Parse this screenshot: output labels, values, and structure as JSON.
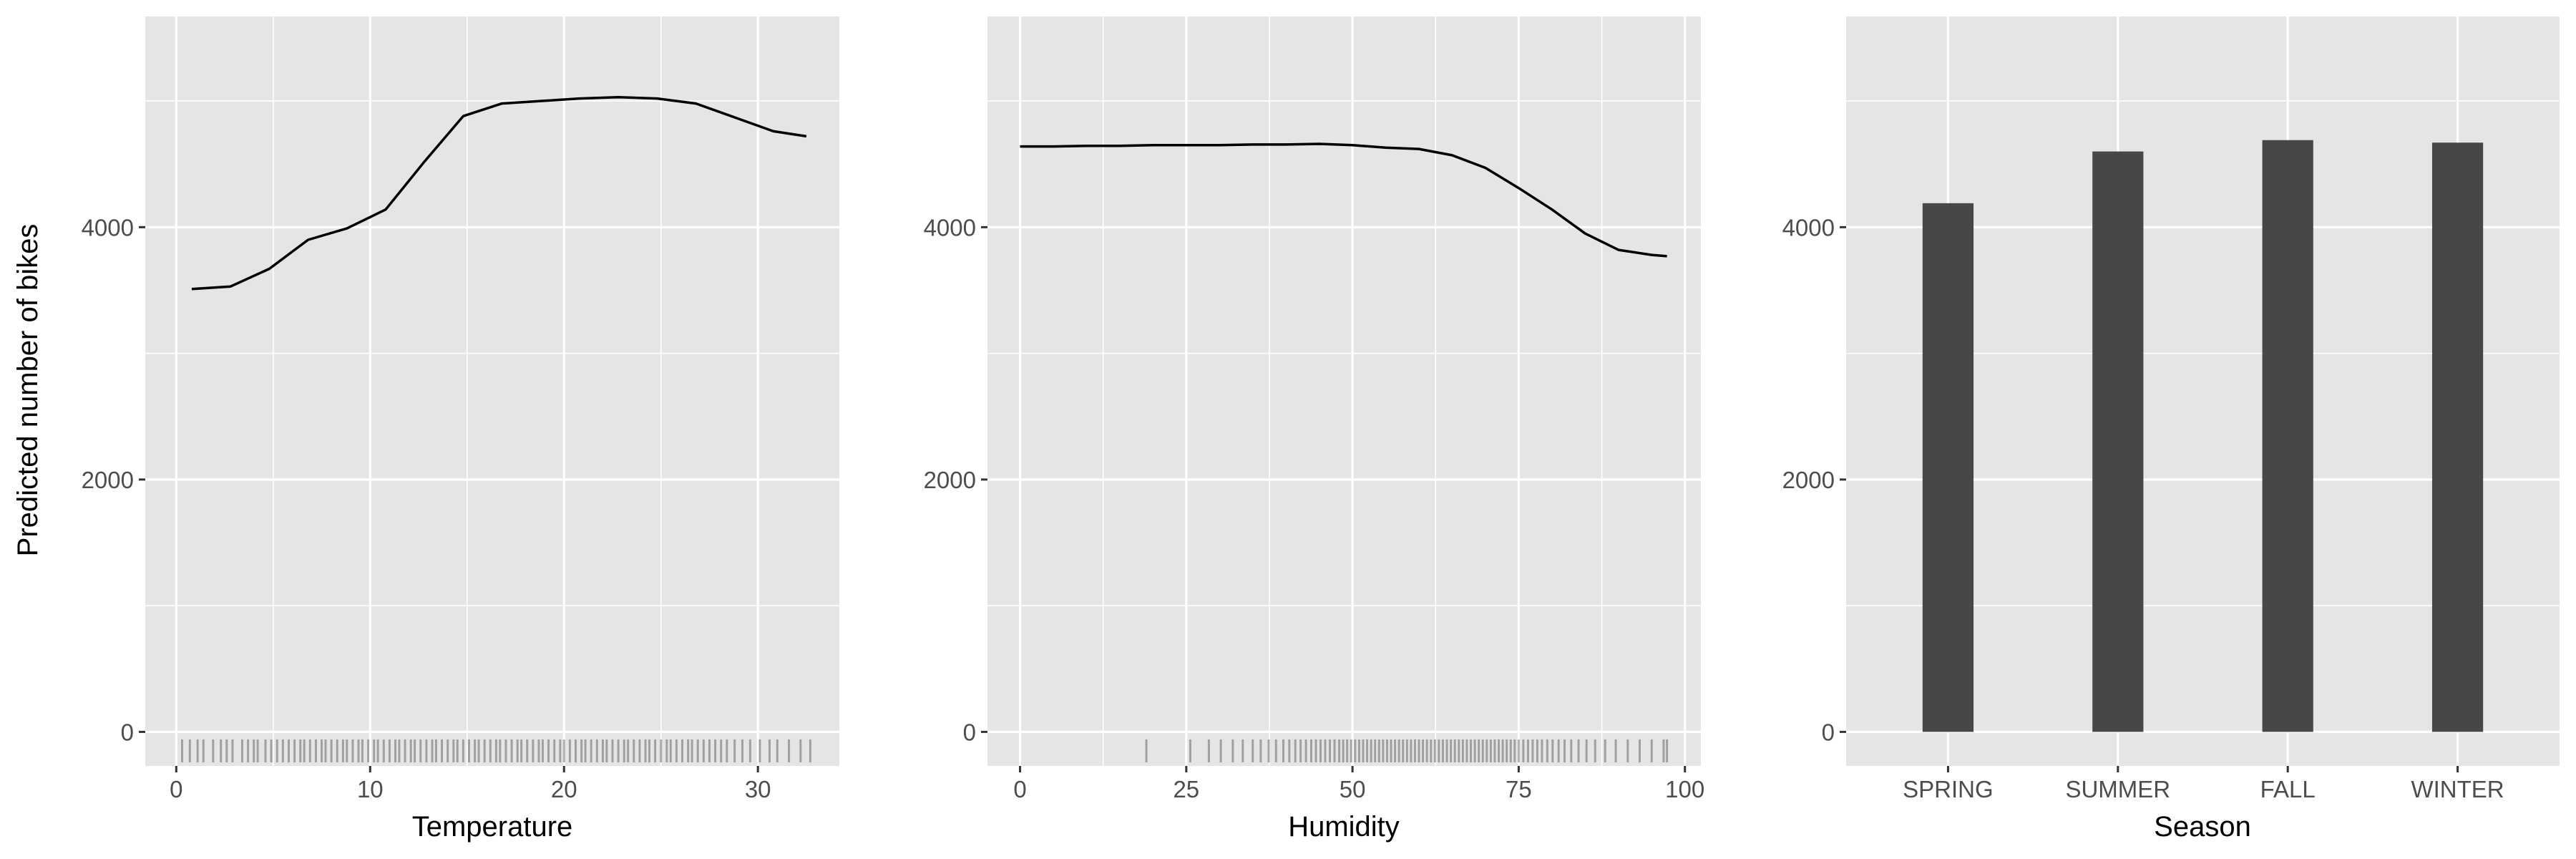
{
  "colors": {
    "panel_background": "#e5e5e5",
    "grid_major": "#ffffff",
    "line": "#000000",
    "bar_fill": "#474747",
    "tick_label": "#4d4d4d",
    "axis_title": "#000000"
  },
  "chart_data": [
    {
      "type": "line",
      "xlabel": "Temperature",
      "ylabel": "Predicted number of bikes",
      "xlim": [
        -1.6,
        34.2
      ],
      "ylim": [
        -270,
        5670
      ],
      "x_ticks": [
        0,
        10,
        20,
        30
      ],
      "x_tick_labels": [
        "0",
        "10",
        "20",
        "30"
      ],
      "y_ticks": [
        0,
        2000,
        4000
      ],
      "y_tick_labels": [
        "0",
        "2000",
        "4000"
      ],
      "grid": true,
      "x": [
        0.8,
        2.8,
        4.8,
        6.8,
        8.8,
        10.8,
        12.8,
        14.8,
        16.8,
        18.8,
        20.8,
        22.8,
        24.8,
        26.8,
        28.8,
        30.8,
        32.5
      ],
      "y": [
        3510,
        3530,
        3670,
        3900,
        3990,
        4140,
        4520,
        4880,
        4980,
        5000,
        5020,
        5030,
        5020,
        4980,
        4870,
        4760,
        4720
      ],
      "rug": [
        0.3,
        0.7,
        1.1,
        1.4,
        1.9,
        2.3,
        2.6,
        2.9,
        3.4,
        3.7,
        4.0,
        4.2,
        4.6,
        4.9,
        5.2,
        5.5,
        5.8,
        6.1,
        6.4,
        6.6,
        6.9,
        7.2,
        7.5,
        7.7,
        8.0,
        8.3,
        8.6,
        8.8,
        9.1,
        9.4,
        9.6,
        9.9,
        10.2,
        10.4,
        10.7,
        11.0,
        11.3,
        11.5,
        11.8,
        12.1,
        12.3,
        12.6,
        12.9,
        13.2,
        13.4,
        13.7,
        14.0,
        14.3,
        14.5,
        14.8,
        15.1,
        15.4,
        15.6,
        15.9,
        16.2,
        16.5,
        16.7,
        17.0,
        17.3,
        17.6,
        17.8,
        18.1,
        18.4,
        18.7,
        18.9,
        19.2,
        19.5,
        19.8,
        20.0,
        20.3,
        20.6,
        20.9,
        21.1,
        21.4,
        21.7,
        22.0,
        22.2,
        22.5,
        22.8,
        23.1,
        23.3,
        23.6,
        23.9,
        24.2,
        24.4,
        24.7,
        25.0,
        25.3,
        25.5,
        25.8,
        26.1,
        26.4,
        26.6,
        26.9,
        27.2,
        27.5,
        27.8,
        28.1,
        28.4,
        28.8,
        29.2,
        29.6,
        30.1,
        30.6,
        31.0,
        31.6,
        32.2,
        32.7
      ]
    },
    {
      "type": "line",
      "xlabel": "Humidity",
      "ylabel": "",
      "xlim": [
        -4.9,
        102.4
      ],
      "ylim": [
        -270,
        5670
      ],
      "x_ticks": [
        0,
        25,
        50,
        75,
        100
      ],
      "x_tick_labels": [
        "0",
        "25",
        "50",
        "75",
        "100"
      ],
      "y_ticks": [
        0,
        2000,
        4000
      ],
      "y_tick_labels": [
        "0",
        "2000",
        "4000"
      ],
      "grid": true,
      "x": [
        0,
        5,
        10,
        15,
        20,
        25,
        30,
        35,
        40,
        45,
        50,
        55,
        60,
        65,
        70,
        75,
        80,
        85,
        90,
        95,
        97.3
      ],
      "y": [
        4640,
        4640,
        4645,
        4645,
        4650,
        4650,
        4650,
        4655,
        4655,
        4660,
        4650,
        4630,
        4620,
        4570,
        4470,
        4310,
        4140,
        3950,
        3820,
        3780,
        3770
      ],
      "rug": [
        19.0,
        25.6,
        28.4,
        30.2,
        32.0,
        33.5,
        35.0,
        36.2,
        37.4,
        38.5,
        39.6,
        40.5,
        41.4,
        42.2,
        43.0,
        43.8,
        44.5,
        45.2,
        45.9,
        46.6,
        47.3,
        48.0,
        48.6,
        49.2,
        49.8,
        50.4,
        51.0,
        51.6,
        52.2,
        52.8,
        53.4,
        54.0,
        54.6,
        55.2,
        55.8,
        56.4,
        57.0,
        57.6,
        58.2,
        58.8,
        59.4,
        60.0,
        60.6,
        61.2,
        61.8,
        62.4,
        63.0,
        63.6,
        64.2,
        64.8,
        65.4,
        66.0,
        66.6,
        67.2,
        67.8,
        68.4,
        69.0,
        69.6,
        70.2,
        70.8,
        71.4,
        72.0,
        72.6,
        73.2,
        73.8,
        74.4,
        75.0,
        75.7,
        76.4,
        77.1,
        77.8,
        78.5,
        79.3,
        80.1,
        81.0,
        81.9,
        82.9,
        84.0,
        85.2,
        86.5,
        88.0,
        89.6,
        91.4,
        93.2,
        95.0,
        96.8,
        97.3
      ]
    },
    {
      "type": "bar",
      "xlabel": "Season",
      "ylabel": "",
      "ylim": [
        -270,
        5670
      ],
      "y_ticks": [
        0,
        2000,
        4000
      ],
      "y_tick_labels": [
        "0",
        "2000",
        "4000"
      ],
      "grid": true,
      "categories": [
        "SPRING",
        "SUMMER",
        "FALL",
        "WINTER"
      ],
      "values": [
        4190,
        4600,
        4690,
        4670
      ]
    }
  ]
}
